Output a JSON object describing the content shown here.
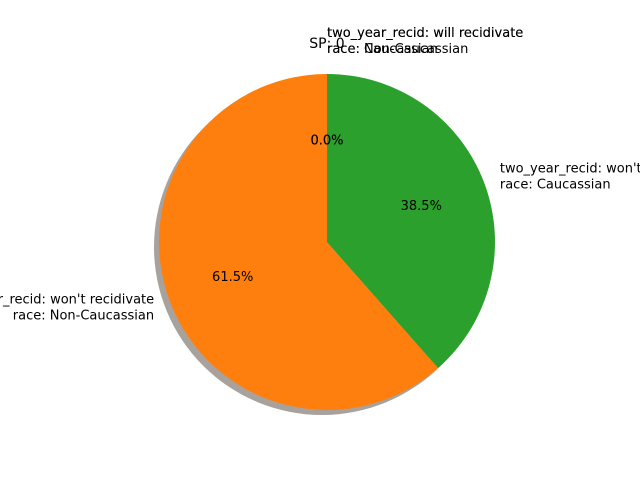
{
  "chart_data": {
    "type": "pie",
    "title": "SP: 0",
    "slices": [
      {
        "label_lines": [
          "two_year_recid: will recidivate",
          "race: Caucassian"
        ],
        "percent": 0.0,
        "percent_label": "0.0%",
        "color": "#1f77b4"
      },
      {
        "label_lines": [
          "two_year_recid: will recidivate",
          "race: Non-Caucassian"
        ],
        "percent": 0.0,
        "percent_label": "0.0%",
        "color": "#d62728"
      },
      {
        "label_lines": [
          "two_year_recid: won't recidivate",
          "race: Non-Caucassian"
        ],
        "percent": 61.5,
        "percent_label": "61.5%",
        "color": "#ff7f0e"
      },
      {
        "label_lines": [
          "two_year_recid: won't recidivate",
          "race: Caucassian"
        ],
        "percent": 38.5,
        "percent_label": "38.5%",
        "color": "#2ca02c"
      }
    ],
    "start_angle": "top",
    "direction": "counterclockwise",
    "shadow": true
  }
}
